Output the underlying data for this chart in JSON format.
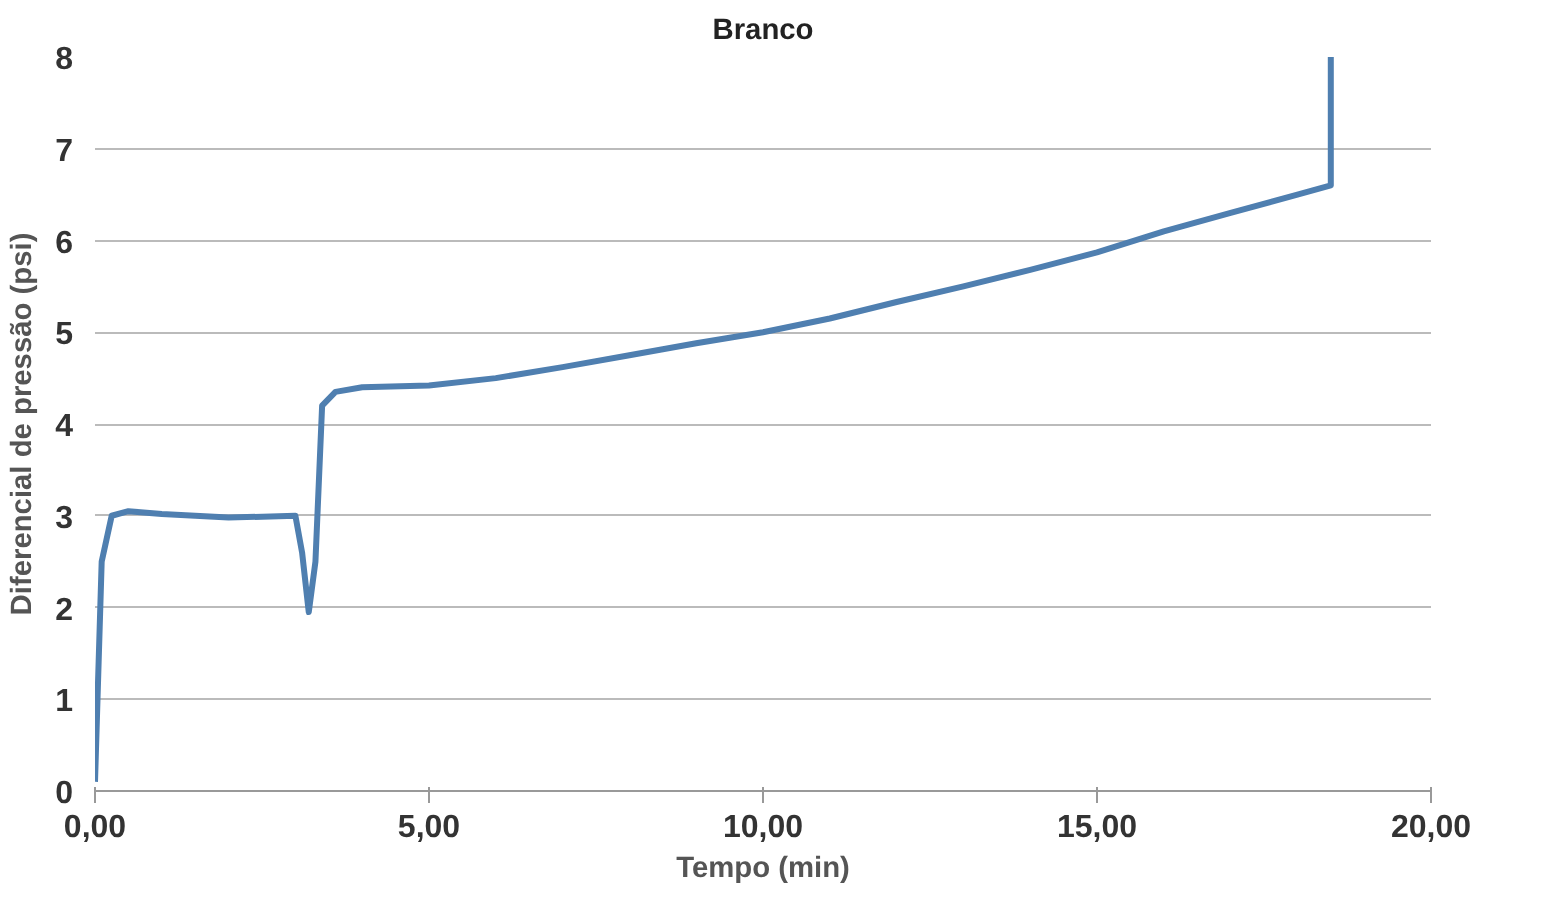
{
  "chart_data": {
    "type": "line",
    "title": "Branco",
    "xlabel": "Tempo (min)",
    "ylabel": "Diferencial de pressão (psi)",
    "series": [
      {
        "color": "#4f7fb0",
        "x": [
          0,
          0.1,
          0.25,
          0.5,
          1,
          2,
          3,
          3.1,
          3.2,
          3.3,
          3.4,
          3.6,
          4,
          5,
          6,
          7,
          8,
          9,
          10,
          11,
          12,
          13,
          14,
          15,
          16,
          17,
          18,
          18.5,
          18.5
        ],
        "values": [
          0.1,
          2.5,
          3.0,
          3.05,
          3.02,
          2.98,
          3.0,
          2.6,
          1.95,
          2.5,
          4.2,
          4.35,
          4.4,
          4.42,
          4.5,
          4.62,
          4.75,
          4.88,
          5.0,
          5.15,
          5.33,
          5.5,
          5.68,
          5.87,
          6.1,
          6.3,
          6.5,
          6.6,
          8.0
        ]
      }
    ],
    "xlim": [
      0,
      20
    ],
    "xticks": [
      {
        "value": 0,
        "label": "0,00"
      },
      {
        "value": 5,
        "label": "5,00"
      },
      {
        "value": 10,
        "label": "10,00"
      },
      {
        "value": 15,
        "label": "15,00"
      },
      {
        "value": 20,
        "label": "20,00"
      }
    ],
    "ylim": [
      0,
      8
    ],
    "yticks": [
      0,
      1,
      2,
      3,
      4,
      5,
      6,
      7,
      8
    ],
    "grid": "y",
    "marker": "none",
    "line_style": "solid"
  }
}
